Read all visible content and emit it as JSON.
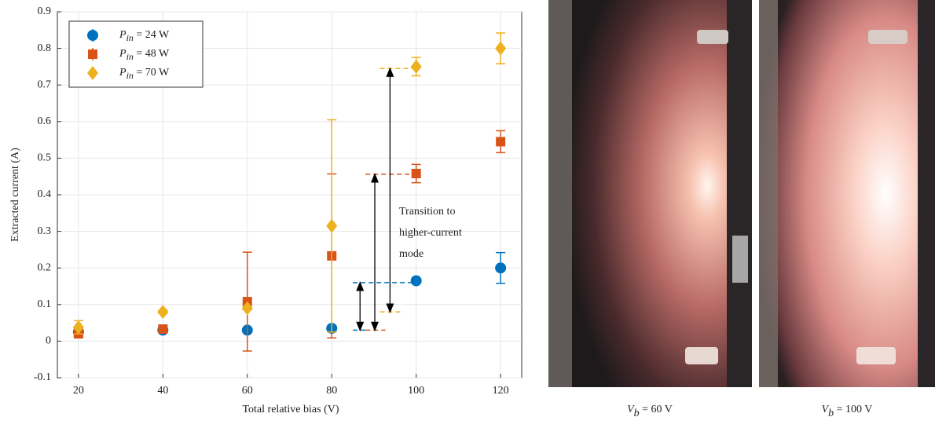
{
  "chart_data": {
    "type": "errorbar-scatter",
    "xlabel": "Total relative bias (V)",
    "ylabel": "Extracted current (A)",
    "xlim": [
      15,
      125
    ],
    "xticks": [
      20,
      40,
      60,
      80,
      100,
      120
    ],
    "ylim": [
      -0.1,
      0.9
    ],
    "yticks": [
      -0.1,
      0,
      0.1,
      0.2,
      0.3,
      0.4,
      0.5,
      0.6,
      0.7,
      0.8,
      0.9
    ],
    "grid": true,
    "legend": "upper left",
    "x": [
      20,
      40,
      60,
      80,
      100,
      120
    ],
    "series": [
      {
        "name": "P",
        "name_sub": "in",
        "name_suffix": " = 24 W",
        "color": "#0072bd",
        "marker": "circle",
        "values": [
          0.025,
          0.03,
          0.03,
          0.035,
          0.165,
          0.2
        ],
        "errors": [
          0.008,
          0.005,
          0.005,
          0.005,
          0.005,
          0.042
        ]
      },
      {
        "name": "P",
        "name_sub": "in",
        "name_suffix": " = 48 W",
        "color": "#d95319",
        "marker": "square",
        "values": [
          0.02,
          0.033,
          0.108,
          0.233,
          0.458,
          0.545
        ],
        "errors": [
          0.01,
          0.005,
          0.135,
          0.224,
          0.025,
          0.03
        ]
      },
      {
        "name": "P",
        "name_sub": "in",
        "name_suffix": " = 70 W",
        "color": "#edb120",
        "marker": "diamond",
        "values": [
          0.038,
          0.08,
          0.09,
          0.315,
          0.75,
          0.8
        ],
        "errors": [
          0.018,
          0.005,
          0.005,
          0.29,
          0.025,
          0.042
        ]
      }
    ],
    "dashes": [
      {
        "x": [
          85,
          100
        ],
        "y": 0.16,
        "color": "#0072bd"
      },
      {
        "x": [
          88,
          100
        ],
        "y": 0.456,
        "color": "#d95319"
      },
      {
        "x": [
          91.4,
          100
        ],
        "y": 0.745,
        "color": "#edb120"
      },
      {
        "x": [
          85,
          88
        ],
        "y": 0.03,
        "color": "#0072bd"
      },
      {
        "x": [
          88,
          92.7
        ],
        "y": 0.03,
        "color": "#d95319"
      },
      {
        "x": [
          91.4,
          96.4
        ],
        "y": 0.08,
        "color": "#edb120"
      }
    ],
    "arrows": [
      {
        "x": 86.7,
        "from": 0.03,
        "to": 0.16
      },
      {
        "x": 90.2,
        "from": 0.03,
        "to": 0.456
      },
      {
        "x": 93.8,
        "from": 0.08,
        "to": 0.745
      }
    ],
    "annotation": [
      "Transition to",
      "higher-current",
      "mode"
    ]
  },
  "photos": [
    {
      "var": "V",
      "sub": "b",
      "rest": " = 60 V"
    },
    {
      "var": "V",
      "sub": "b",
      "rest": " = 100 V"
    }
  ]
}
